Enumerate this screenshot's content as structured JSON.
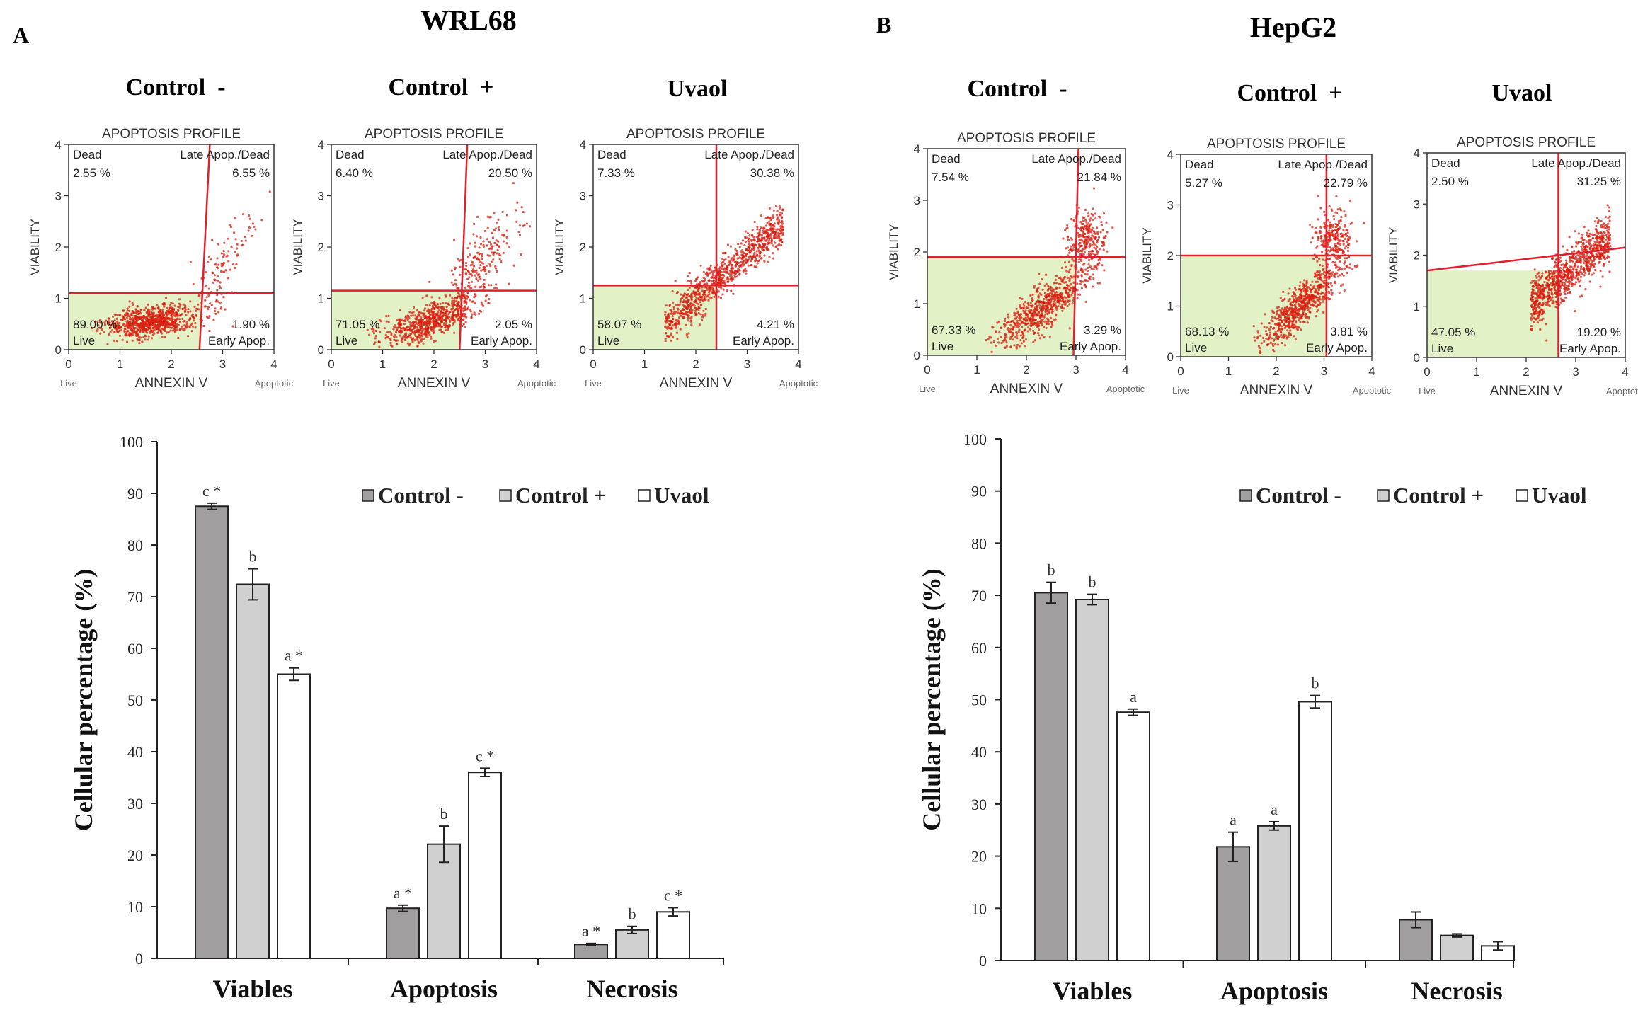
{
  "figure": {
    "colors": {
      "gate_line": "#e0202a",
      "gate_fill": "#e3f2c6",
      "dot": "#d91e10",
      "axis": "#222222",
      "bar_control_neg": "#a09e9e",
      "bar_control_pos": "#d0d0d0",
      "bar_uvaol": "#ffffff",
      "bar_stroke": "#222222"
    },
    "panels": [
      {
        "letter": "A",
        "cell_line": "WRL68",
        "flow_plots": [
          {
            "label": "Control  -",
            "profile_title": "APOPTOSIS PROFILE",
            "y_axis": "VIABILITY",
            "x_axis": "ANNEXIN V",
            "x_left_note": "Live",
            "x_right_note": "Apoptotic",
            "ticks": [
              "0",
              "1",
              "2",
              "3",
              "4"
            ],
            "quadrants": {
              "dead_label": "Dead",
              "dead_value": "2.55 %",
              "late_label": "Late Apop./Dead",
              "late_value": "6.55 %",
              "live_label": "Live",
              "live_value": "89.00 %",
              "early_label": "Early Apop.",
              "early_value": "1.90 %"
            },
            "gate": {
              "vertical": [
                2.55,
                0.0,
                2.75,
                4.0
              ],
              "horizontal": [
                0.0,
                1.1,
                4.0,
                1.1
              ]
            }
          },
          {
            "label": "Control  +",
            "profile_title": "APOPTOSIS PROFILE",
            "y_axis": "VIABILITY",
            "x_axis": "ANNEXIN V",
            "x_left_note": "Live",
            "x_right_note": "Apoptotic",
            "ticks": [
              "0",
              "1",
              "2",
              "3",
              "4"
            ],
            "quadrants": {
              "dead_label": "Dead",
              "dead_value": "6.40 %",
              "late_label": "Late Apop./Dead",
              "late_value": "20.50 %",
              "live_label": "Live",
              "live_value": "71.05 %",
              "early_label": "Early Apop.",
              "early_value": "2.05 %"
            },
            "gate": {
              "vertical": [
                2.5,
                0.0,
                2.65,
                4.0
              ],
              "horizontal": [
                0.0,
                1.15,
                4.0,
                1.15
              ]
            }
          },
          {
            "label": "Uvaol",
            "profile_title": "APOPTOSIS PROFILE",
            "y_axis": "VIABILITY",
            "x_axis": "ANNEXIN V",
            "x_left_note": "Live",
            "x_right_note": "Apoptotic",
            "ticks": [
              "0",
              "1",
              "2",
              "3",
              "4"
            ],
            "quadrants": {
              "dead_label": "Dead",
              "dead_value": "7.33 %",
              "late_label": "Late Apop./Dead",
              "late_value": "30.38 %",
              "live_label": "Live",
              "live_value": "58.07 %",
              "early_label": "Early Apop.",
              "early_value": "4.21 %"
            },
            "gate": {
              "vertical": [
                2.4,
                0.0,
                2.4,
                4.0
              ],
              "horizontal": [
                0.0,
                1.25,
                4.0,
                1.25
              ]
            }
          }
        ]
      },
      {
        "letter": "B",
        "cell_line": "HepG2",
        "flow_plots": [
          {
            "label": "Control  -",
            "profile_title": "APOPTOSIS PROFILE",
            "y_axis": "VIABILITY",
            "x_axis": "ANNEXIN V",
            "x_left_note": "Live",
            "x_right_note": "Apoptotic",
            "ticks": [
              "0",
              "1",
              "2",
              "3",
              "4"
            ],
            "quadrants": {
              "dead_label": "Dead",
              "dead_value": "7.54 %",
              "late_label": "Late Apop./Dead",
              "late_value": "21.84 %",
              "live_label": "Live",
              "live_value": "67.33 %",
              "early_label": "Early Apop.",
              "early_value": "3.29 %"
            },
            "gate": {
              "vertical": [
                2.95,
                0.0,
                3.05,
                4.0
              ],
              "horizontal": [
                0.0,
                1.9,
                4.0,
                1.9
              ]
            }
          },
          {
            "label": "Control  +",
            "profile_title": "APOPTOSIS PROFILE",
            "y_axis": "VIABILITY",
            "x_axis": "ANNEXIN V",
            "x_left_note": "Live",
            "x_right_note": "Apoptotic",
            "ticks": [
              "0",
              "1",
              "2",
              "3",
              "4"
            ],
            "quadrants": {
              "dead_label": "Dead",
              "dead_value": "5.27 %",
              "late_label": "Late Apop./Dead",
              "late_value": "22.79 %",
              "live_label": "Live",
              "live_value": "68.13 %",
              "early_label": "Early Apop.",
              "early_value": "3.81 %"
            },
            "gate": {
              "vertical": [
                3.05,
                0.0,
                3.05,
                4.0
              ],
              "horizontal": [
                0.0,
                2.0,
                4.0,
                2.0
              ]
            }
          },
          {
            "label": "Uvaol",
            "profile_title": "APOPTOSIS PROFILE",
            "y_axis": "VIABILITY",
            "x_axis": "ANNEXIN V",
            "x_left_note": "Live",
            "x_right_note": "Apoptotic",
            "ticks": [
              "0",
              "1",
              "2",
              "3",
              "4"
            ],
            "quadrants": {
              "dead_label": "Dead",
              "dead_value": "2.50 %",
              "late_label": "Late Apop./Dead",
              "late_value": "31.25 %",
              "live_label": "Live",
              "live_value": "47.05 %",
              "early_label": "Early Apop.",
              "early_value": "19.20 %"
            },
            "gate": {
              "vertical": [
                2.65,
                0.0,
                2.65,
                4.0
              ],
              "horizontal": [
                0.0,
                1.7,
                4.0,
                2.15
              ]
            }
          }
        ]
      }
    ]
  },
  "chart_data": [
    {
      "type": "bar",
      "panel": "A",
      "title": "WRL68",
      "categories": [
        "Viables",
        "Apoptosis",
        "Necrosis"
      ],
      "series": [
        {
          "name": "Control -",
          "values": [
            87.5,
            9.7,
            2.7
          ],
          "errors": [
            0.6,
            0.6,
            0.2
          ],
          "labels": [
            "c *",
            "a *",
            "a *"
          ]
        },
        {
          "name": "Control +",
          "values": [
            72.4,
            22.1,
            5.5
          ],
          "errors": [
            3.0,
            3.5,
            0.7
          ],
          "labels": [
            "b",
            "b",
            "b"
          ]
        },
        {
          "name": "Uvaol",
          "values": [
            55.0,
            36.0,
            9.0
          ],
          "errors": [
            1.2,
            0.8,
            0.8
          ],
          "labels": [
            "a *",
            "c *",
            "c *"
          ]
        }
      ],
      "xlabel": "",
      "ylabel": "Cellular percentage (%)",
      "ylim": [
        0,
        100
      ],
      "yticks": [
        "0",
        "10",
        "20",
        "30",
        "40",
        "50",
        "60",
        "70",
        "80",
        "90",
        "100"
      ],
      "legend": "top-right",
      "grid": false
    },
    {
      "type": "bar",
      "panel": "B",
      "title": "HepG2",
      "categories": [
        "Viables",
        "Apoptosis",
        "Necrosis"
      ],
      "series": [
        {
          "name": "Control -",
          "values": [
            70.5,
            21.8,
            7.8
          ],
          "errors": [
            2.0,
            2.8,
            1.5
          ],
          "labels": [
            "b",
            "a",
            ""
          ]
        },
        {
          "name": "Control +",
          "values": [
            69.2,
            25.8,
            4.8
          ],
          "errors": [
            1.0,
            0.8,
            0.3
          ],
          "labels": [
            "b",
            "a",
            ""
          ]
        },
        {
          "name": "Uvaol",
          "values": [
            47.6,
            49.6,
            2.8
          ],
          "errors": [
            0.6,
            1.2,
            0.8
          ],
          "labels": [
            "a",
            "b",
            ""
          ]
        }
      ],
      "xlabel": "",
      "ylabel": "Cellular percentage (%)",
      "ylim": [
        0,
        100
      ],
      "yticks": [
        "0",
        "10",
        "20",
        "30",
        "40",
        "50",
        "60",
        "70",
        "80",
        "90",
        "100"
      ],
      "legend": "top-right",
      "grid": false
    }
  ]
}
